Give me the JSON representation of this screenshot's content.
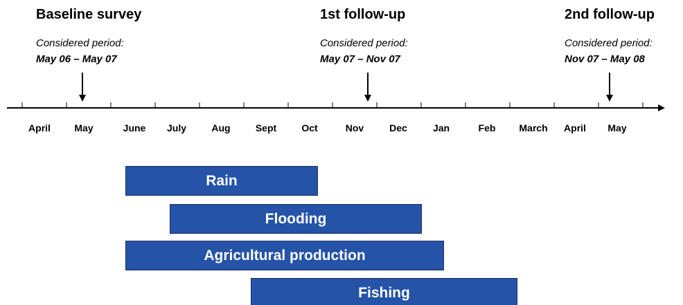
{
  "surveys": [
    {
      "title": "Baseline survey",
      "period_label": "Considered period:",
      "period": "May 06 – May 07"
    },
    {
      "title": "1st follow-up",
      "period_label": "Considered period:",
      "period": "May 07 – Nov 07"
    },
    {
      "title": "2nd follow-up",
      "period_label": "Considered period:",
      "period": "Nov 07 – May 08"
    }
  ],
  "months": [
    "April",
    "May",
    "June",
    "July",
    "Aug",
    "Sept",
    "Oct",
    "Nov",
    "Dec",
    "Jan",
    "Feb",
    "March",
    "April",
    "May"
  ],
  "bars": [
    {
      "label": "Rain"
    },
    {
      "label": "Flooding"
    },
    {
      "label": "Agricultural production"
    },
    {
      "label": "Fishing"
    }
  ]
}
